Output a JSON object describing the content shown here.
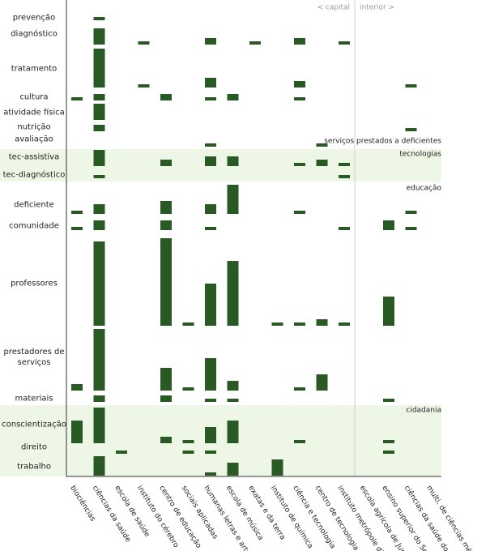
{
  "chart_data": {
    "type": "matrix",
    "color": "#2a5a24",
    "band_color": "#eef6e6",
    "header": {
      "left": "< capital",
      "right": "interior >"
    },
    "columns": [
      "biociências",
      "ciências da saúde",
      "escola de saúde",
      "instituto do cérebro",
      "centro de educação",
      "sociais aplicadas",
      "humanas letras e artes",
      "escola de música",
      "exatas e da terra",
      "instituto de química",
      "ciência e tecnologia",
      "centro de tecnologia",
      "instituto metrópole digital",
      "escola agrícola de Jundiaí",
      "ensino superior do Seridó",
      "ciências da saúde do Trairí",
      "multi. de ciências médicas"
    ],
    "groups": [
      "serviços prestados a deficientes",
      "tecnologias",
      "educação",
      "cidadania"
    ],
    "rows": [
      {
        "label": "prevenção",
        "values": [
          null,
          1,
          null,
          null,
          null,
          null,
          null,
          null,
          null,
          null,
          null,
          null,
          null,
          null,
          null,
          null,
          null
        ]
      },
      {
        "label": "diagnóstico",
        "values": [
          null,
          5,
          null,
          1,
          null,
          null,
          2,
          null,
          1,
          null,
          2,
          null,
          1,
          null,
          null,
          null,
          null
        ]
      },
      {
        "label": "tratamento",
        "values": [
          null,
          12,
          null,
          1,
          null,
          null,
          3,
          null,
          null,
          null,
          2,
          null,
          null,
          null,
          null,
          1,
          null
        ]
      },
      {
        "label": "cultura",
        "values": [
          1,
          2,
          null,
          null,
          2,
          null,
          1,
          2,
          null,
          null,
          1,
          null,
          null,
          null,
          null,
          null,
          null
        ]
      },
      {
        "label": "atividade física",
        "values": [
          null,
          5,
          null,
          null,
          null,
          null,
          null,
          null,
          null,
          null,
          null,
          null,
          null,
          null,
          null,
          null,
          null
        ]
      },
      {
        "label": "nutrição",
        "values": [
          null,
          2,
          null,
          null,
          null,
          null,
          null,
          null,
          null,
          null,
          null,
          null,
          null,
          null,
          null,
          1,
          null
        ]
      },
      {
        "label": "avaliação",
        "values": [
          null,
          null,
          null,
          null,
          null,
          null,
          1,
          null,
          null,
          null,
          null,
          1,
          null,
          null,
          null,
          null,
          null
        ]
      },
      {
        "label": "tec-assistiva",
        "values": [
          null,
          5,
          null,
          null,
          2,
          null,
          3,
          3,
          null,
          null,
          1,
          2,
          1,
          null,
          null,
          null,
          null
        ]
      },
      {
        "label": "tec-diagnóstico",
        "values": [
          null,
          1,
          null,
          null,
          null,
          null,
          null,
          null,
          null,
          null,
          null,
          null,
          1,
          null,
          null,
          null,
          null
        ]
      },
      {
        "label": "deficiente",
        "values": [
          1,
          3,
          null,
          null,
          4,
          null,
          3,
          9,
          null,
          null,
          1,
          null,
          null,
          null,
          null,
          1,
          null
        ]
      },
      {
        "label": "comunidade",
        "values": [
          1,
          3,
          null,
          null,
          3,
          null,
          1,
          null,
          null,
          null,
          null,
          null,
          1,
          null,
          3,
          1,
          null
        ]
      },
      {
        "label": "professores",
        "values": [
          null,
          26,
          null,
          null,
          27,
          1,
          13,
          20,
          null,
          1,
          1,
          2,
          1,
          null,
          9,
          null,
          null
        ]
      },
      {
        "label": "prestadores de serviços",
        "values": [
          2,
          19,
          null,
          null,
          7,
          1,
          10,
          3,
          null,
          null,
          1,
          5,
          null,
          null,
          null,
          null,
          null
        ]
      },
      {
        "label": "materiais",
        "values": [
          null,
          2,
          null,
          null,
          2,
          null,
          1,
          1,
          null,
          null,
          null,
          null,
          null,
          null,
          1,
          null,
          null
        ]
      },
      {
        "label": "conscientização",
        "values": [
          7,
          11,
          null,
          null,
          2,
          1,
          5,
          7,
          null,
          null,
          1,
          null,
          null,
          null,
          1,
          null,
          null
        ]
      },
      {
        "label": "direito",
        "values": [
          null,
          null,
          1,
          null,
          null,
          1,
          1,
          null,
          null,
          null,
          null,
          null,
          null,
          null,
          1,
          null,
          null
        ]
      },
      {
        "label": "trabalho",
        "values": [
          null,
          6,
          null,
          null,
          null,
          null,
          1,
          4,
          null,
          5,
          null,
          null,
          null,
          null,
          null,
          null,
          null
        ]
      }
    ]
  }
}
